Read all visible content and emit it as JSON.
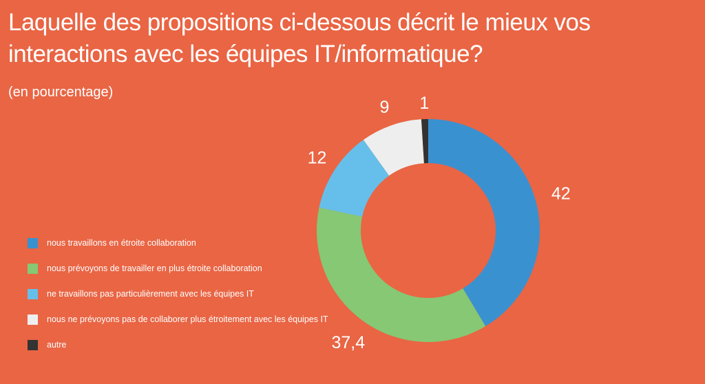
{
  "title": "Laquelle des propositions ci-dessous décrit le mieux vos interactions avec les équipes IT/informatique?",
  "subtitle": "(en pourcentage)",
  "chart_data": {
    "type": "pie",
    "donut": true,
    "title": "Laquelle des propositions ci-dessous décrit le mieux vos interactions avec les équipes IT/informatique?",
    "subtitle": "(en pourcentage)",
    "legend_position": "left",
    "slices": [
      {
        "label": "nous travaillons en étroite collaboration",
        "value": 42,
        "value_label": "42",
        "color": "#3A91D0"
      },
      {
        "label": "nous prévoyons de travailler en plus étroite collaboration",
        "value": 37.4,
        "value_label": "37,4",
        "color": "#86C873"
      },
      {
        "label": "ne travaillons pas particulièrement avec les équipes IT",
        "value": 12,
        "value_label": "12",
        "color": "#66BFEA"
      },
      {
        "label": "nous ne prévoyons pas de collaborer plus étroitement avec les équipes IT",
        "value": 9,
        "value_label": "9",
        "color": "#EEEEEE"
      },
      {
        "label": "autre",
        "value": 1,
        "value_label": "1",
        "color": "#333333"
      }
    ]
  }
}
